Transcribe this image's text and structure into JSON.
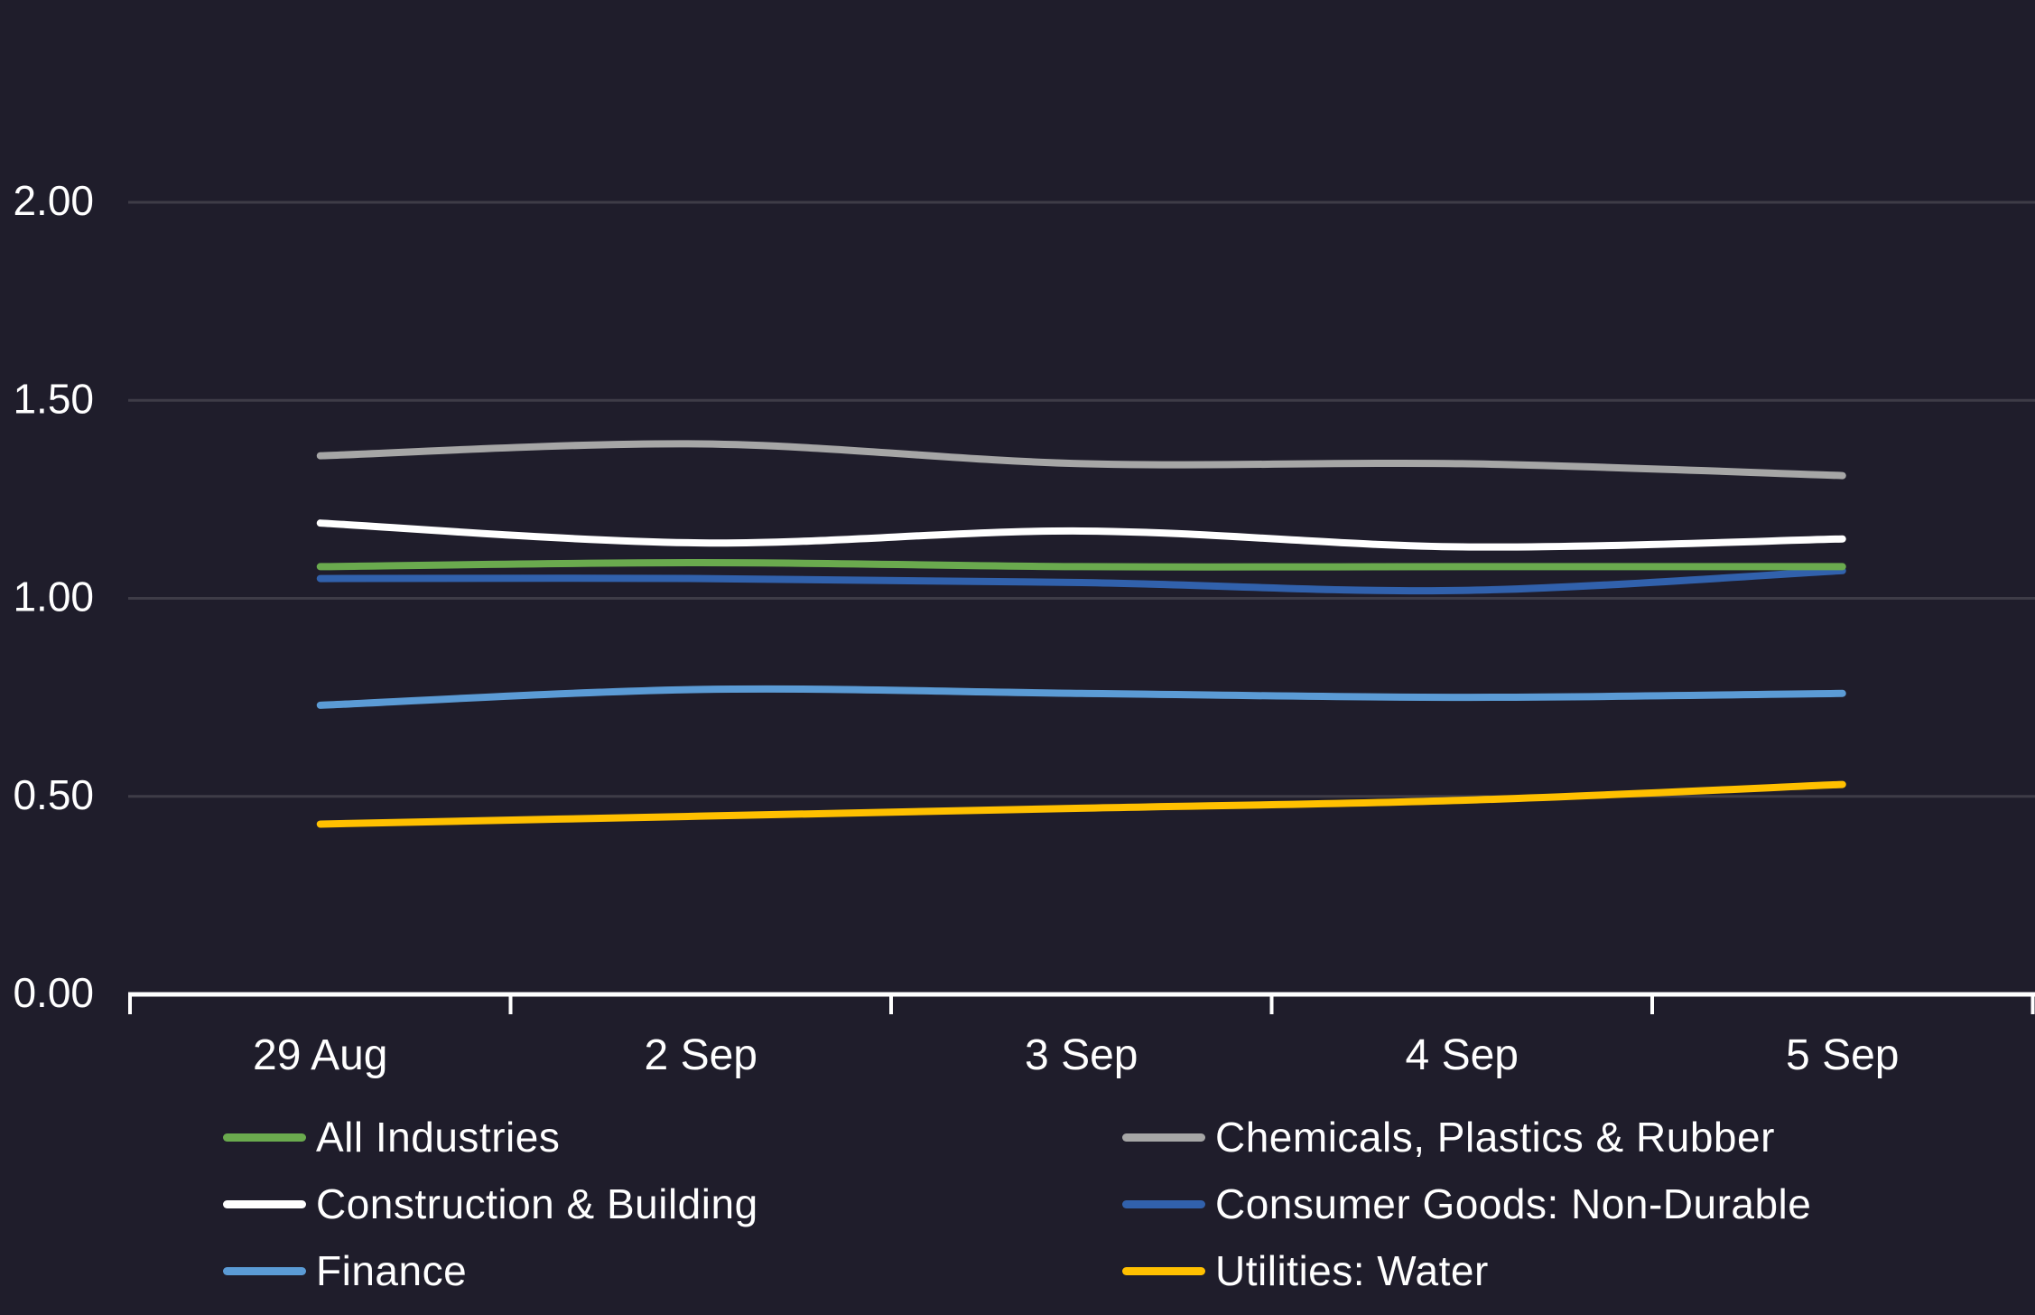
{
  "colors": {
    "background": "#1f1d2b",
    "gridline": "#3e3c47",
    "axis": "#ffffff",
    "text": "#ffffff"
  },
  "chart_data": {
    "type": "line",
    "title": "",
    "x_labels": [
      "29 Aug",
      "2 Sep",
      "3 Sep",
      "4 Sep",
      "5 Sep"
    ],
    "y_axis": {
      "tick_labels": [
        "2.00",
        "1.50",
        "1.00",
        "0.50",
        "0.00"
      ],
      "tick_values": [
        2.0,
        1.5,
        1.0,
        0.5,
        0.0
      ],
      "range": [
        0,
        2.5
      ],
      "grid": true
    },
    "legend_position": "bottom",
    "series": [
      {
        "name": "All Industries",
        "color": "#6aaa4e",
        "values": [
          1.08,
          1.09,
          1.08,
          1.08,
          1.08
        ]
      },
      {
        "name": "Chemicals, Plastics & Rubber",
        "color": "#a6a6a6",
        "values": [
          1.36,
          1.39,
          1.34,
          1.34,
          1.31
        ]
      },
      {
        "name": "Construction & Building",
        "color": "#ffffff",
        "values": [
          1.19,
          1.14,
          1.17,
          1.13,
          1.15
        ]
      },
      {
        "name": "Consumer Goods: Non-Durable",
        "color": "#3161ac",
        "values": [
          1.05,
          1.05,
          1.04,
          1.02,
          1.07
        ]
      },
      {
        "name": "Finance",
        "color": "#5b9bd5",
        "values": [
          0.73,
          0.77,
          0.76,
          0.75,
          0.76
        ]
      },
      {
        "name": "Utilities: Water",
        "color": "#ffc000",
        "values": [
          0.43,
          0.45,
          0.47,
          0.49,
          0.53
        ]
      }
    ]
  }
}
